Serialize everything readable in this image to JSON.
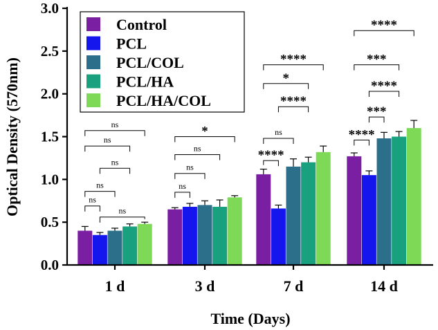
{
  "chart_data": {
    "type": "bar",
    "ylabel": "Optical Density (570nm)",
    "xlabel": "Time (Days)",
    "ylim": [
      0,
      3.0
    ],
    "yticks": [
      "0.0",
      "0.5",
      "1.0",
      "1.5",
      "2.0",
      "2.5",
      "3.0"
    ],
    "categories": [
      "1 d",
      "3 d",
      "7 d",
      "14 d"
    ],
    "legend_position": "top-left",
    "series": [
      {
        "name": "Control",
        "color": "#7B1FA2",
        "values": [
          0.4,
          0.65,
          1.06,
          1.27
        ],
        "errors": [
          0.05,
          0.02,
          0.06,
          0.04
        ]
      },
      {
        "name": "PCL",
        "color": "#1515EE",
        "values": [
          0.35,
          0.68,
          0.66,
          1.05
        ],
        "errors": [
          0.03,
          0.04,
          0.04,
          0.05
        ]
      },
      {
        "name": "PCL/COL",
        "color": "#2C6F8A",
        "values": [
          0.4,
          0.7,
          1.15,
          1.48
        ],
        "errors": [
          0.03,
          0.05,
          0.09,
          0.07
        ]
      },
      {
        "name": "PCL/HA",
        "color": "#19A07E",
        "values": [
          0.45,
          0.68,
          1.2,
          1.5
        ],
        "errors": [
          0.03,
          0.08,
          0.06,
          0.06
        ]
      },
      {
        "name": "PCL/HA/COL",
        "color": "#7ED957",
        "values": [
          0.48,
          0.79,
          1.32,
          1.6
        ],
        "errors": [
          0.02,
          0.02,
          0.07,
          0.09
        ]
      }
    ],
    "significance": [
      {
        "category": "1 d",
        "from": "Control",
        "to": "PCL",
        "label": "ns",
        "y": 0.69
      },
      {
        "category": "1 d",
        "from": "PCL",
        "to": "PCL/HA/COL",
        "label": "ns",
        "y": 0.56
      },
      {
        "category": "1 d",
        "from": "Control",
        "to": "PCL/COL",
        "label": "ns",
        "y": 0.86
      },
      {
        "category": "1 d",
        "from": "PCL",
        "to": "PCL/HA",
        "label": "ns",
        "y": 1.13
      },
      {
        "category": "1 d",
        "from": "Control",
        "to": "PCL/HA",
        "label": "ns",
        "y": 1.39
      },
      {
        "category": "1 d",
        "from": "Control",
        "to": "PCL/HA/COL",
        "label": "ns",
        "y": 1.57
      },
      {
        "category": "3 d",
        "from": "Control",
        "to": "PCL",
        "label": "ns",
        "y": 0.85
      },
      {
        "category": "3 d",
        "from": "Control",
        "to": "PCL/COL",
        "label": "ns",
        "y": 1.07
      },
      {
        "category": "3 d",
        "from": "Control",
        "to": "PCL/HA",
        "label": "ns",
        "y": 1.29
      },
      {
        "category": "3 d",
        "from": "Control",
        "to": "PCL/HA/COL",
        "label": "*",
        "y": 1.5
      },
      {
        "category": "7 d",
        "from": "Control",
        "to": "PCL",
        "label": "****",
        "y": 1.22
      },
      {
        "category": "7 d",
        "from": "Control",
        "to": "PCL/COL",
        "label": "ns",
        "y": 1.48
      },
      {
        "category": "7 d",
        "from": "PCL",
        "to": "PCL/HA",
        "label": "****",
        "y": 1.85
      },
      {
        "category": "7 d",
        "from": "Control",
        "to": "PCL/HA",
        "label": "*",
        "y": 2.12
      },
      {
        "category": "7 d",
        "from": "Control",
        "to": "PCL/HA/COL",
        "label": "****",
        "y": 2.34
      },
      {
        "category": "14 d",
        "from": "Control",
        "to": "PCL",
        "label": "****",
        "y": 1.46
      },
      {
        "category": "14 d",
        "from": "PCL",
        "to": "PCL/COL",
        "label": "***",
        "y": 1.73
      },
      {
        "category": "14 d",
        "from": "PCL",
        "to": "PCL/HA",
        "label": "****",
        "y": 2.03
      },
      {
        "category": "14 d",
        "from": "Control",
        "to": "PCL/HA",
        "label": "***",
        "y": 2.34
      },
      {
        "category": "14 d",
        "from": "Control",
        "to": "PCL/HA/COL",
        "label": "****",
        "y": 2.74
      }
    ]
  }
}
